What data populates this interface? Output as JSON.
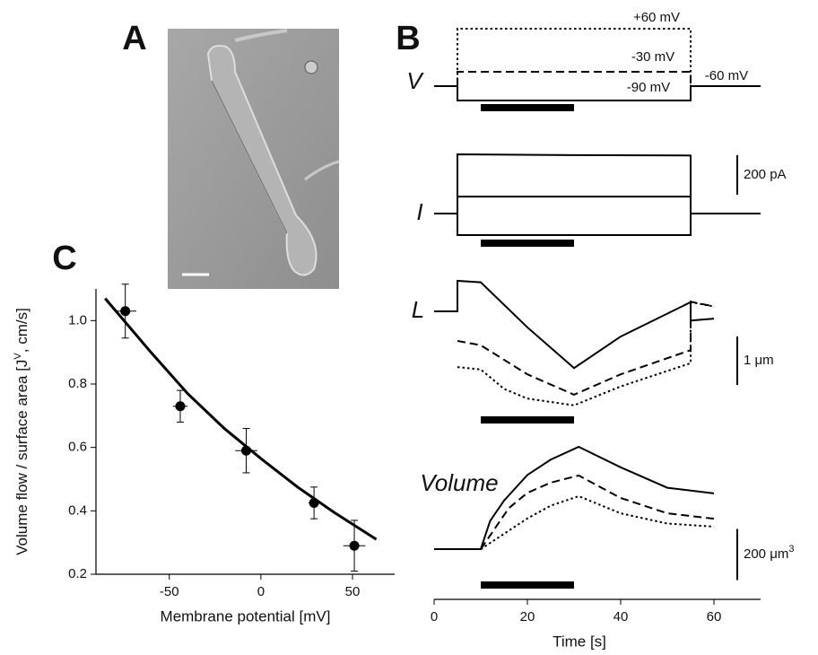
{
  "panel_labels": [
    "A",
    "B",
    "C"
  ],
  "chart_data": [
    {
      "type": "scatter",
      "xlabel": "Membrane potential [mV]",
      "ylabel_parts": [
        "Volume flow / surface area [J",
        "V",
        ", cm/s]"
      ],
      "xlim": [
        -90,
        73
      ],
      "ylim": [
        0.2,
        1.1
      ],
      "xticks": [
        -50,
        0,
        50
      ],
      "yticks": [
        0.2,
        0.4,
        0.6,
        0.8,
        {
          "value": 1,
          "label": "1.0"
        }
      ],
      "series": [
        {
          "color": "#000000",
          "x": [
            -74,
            -44,
            -8,
            29,
            51
          ],
          "values": [
            1.03,
            0.73,
            0.59,
            0.425,
            0.29
          ],
          "xerr": [
            6,
            4,
            6,
            3,
            6
          ],
          "yerr": [
            0.085,
            0.05,
            0.07,
            0.05,
            0.08
          ]
        }
      ],
      "fit": {
        "color": "#000000",
        "x": [
          -85,
          -60,
          -40,
          -20,
          0,
          20,
          40,
          63
        ],
        "values": [
          1.07,
          0.9,
          0.77,
          0.66,
          0.565,
          0.475,
          0.395,
          0.31
        ]
      }
    },
    {
      "type": "traces",
      "xlabel": "Time [s]",
      "xlim": [
        0,
        70
      ],
      "xticks": [
        0,
        20,
        40,
        60
      ],
      "stimulus": [
        10,
        30
      ],
      "rows": [
        {
          "label": "V",
          "baseline_label": "-60 mV",
          "series": [
            {
              "dash": "dotted",
              "label": "+60 mV",
              "x": [
                0,
                5,
                5,
                55,
                55,
                70
              ],
              "values": [
                -60,
                -60,
                60,
                60,
                -60,
                -60
              ]
            },
            {
              "dash": "dashed",
              "label": "-30 mV",
              "x": [
                5,
                5,
                55,
                55
              ],
              "values": [
                -60,
                -30,
                -30,
                -60
              ]
            },
            {
              "dash": "solid",
              "label": "-90 mV",
              "x": [
                0,
                5,
                5,
                55,
                55,
                70
              ],
              "values": [
                -60,
                -60,
                -90,
                -90,
                -60,
                -60
              ]
            }
          ]
        },
        {
          "label": "I",
          "scalebar": {
            "value": 200,
            "label": "200 pA"
          },
          "series": [
            {
              "dash": "solid",
              "x": [
                0,
                5,
                5,
                30,
                55,
                55,
                70
              ],
              "values": [
                0,
                0,
                300,
                296,
                294,
                0,
                0
              ]
            },
            {
              "dash": "solid",
              "x": [
                5,
                5,
                55,
                55
              ],
              "values": [
                0,
                86,
                86,
                0
              ]
            },
            {
              "dash": "solid",
              "x": [
                5,
                5,
                55,
                55
              ],
              "values": [
                0,
                -109,
                -109,
                0
              ]
            }
          ]
        },
        {
          "label": "L",
          "scalebar": {
            "value": 1,
            "label_parts": [
              "1 μm"
            ]
          },
          "series": [
            {
              "dash": "solid",
              "x": [
                0,
                5,
                5,
                10,
                20,
                30,
                40,
                55,
                55,
                60
              ],
              "values": [
                0,
                0,
                0.63,
                0.6,
                -0.33,
                -1.17,
                -0.52,
                0.19,
                -0.19,
                -0.15
              ]
            },
            {
              "dash": "dashed",
              "x": [
                5,
                10,
                20,
                30,
                40,
                55,
                55,
                60
              ],
              "values": [
                -0.61,
                -0.7,
                -1.3,
                -1.72,
                -1.3,
                -0.8,
                0.2,
                0.1
              ]
            },
            {
              "dash": "dotted",
              "x": [
                5,
                10,
                15,
                20,
                30,
                40,
                55,
                55,
                60
              ],
              "values": [
                -1.15,
                -1.2,
                -1.6,
                -1.8,
                -1.94,
                -1.55,
                -1.07,
                0.19,
                0.1
              ]
            }
          ]
        },
        {
          "label": "Volume",
          "scalebar": {
            "value": 200,
            "label_parts": [
              "200 μm",
              "3"
            ]
          },
          "series": [
            {
              "dash": "solid",
              "x": [
                0,
                10,
                12,
                15,
                20,
                25,
                31,
                40,
                50,
                60
              ],
              "values": [
                0,
                0,
                110,
                190,
                290,
                350,
                400,
                320,
                240,
                218
              ]
            },
            {
              "dash": "dashed",
              "x": [
                10,
                13,
                16,
                20,
                25,
                31,
                40,
                50,
                60
              ],
              "values": [
                0,
                80,
                160,
                220,
                260,
                288,
                200,
                140,
                119
              ]
            },
            {
              "dash": "dotted",
              "x": [
                10,
                15,
                20,
                25,
                31,
                40,
                50,
                60
              ],
              "values": [
                0,
                60,
                120,
                170,
                207,
                140,
                100,
                88
              ]
            }
          ]
        }
      ]
    }
  ]
}
